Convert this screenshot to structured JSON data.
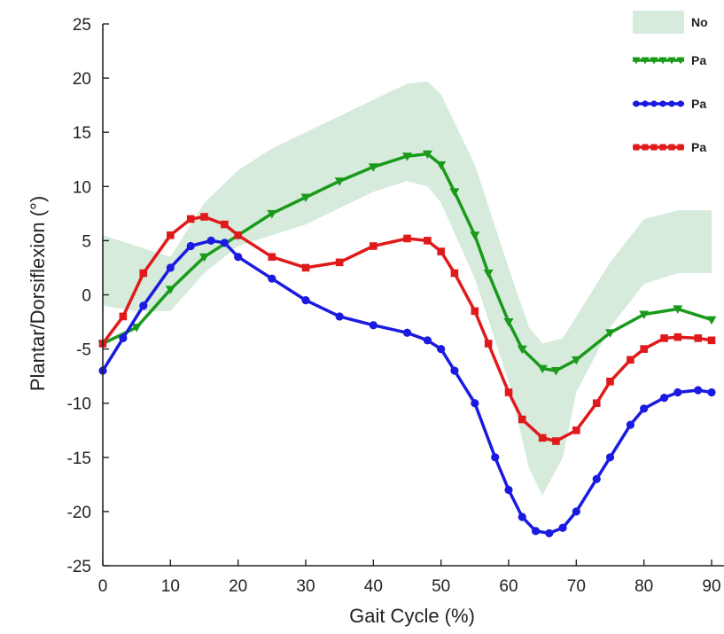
{
  "chart_data": {
    "type": "line",
    "title": "",
    "xlabel": "Gait Cycle (%)",
    "ylabel": "Plantar/Dorsiflexion (°)",
    "xlim": [
      0,
      90
    ],
    "ylim": [
      -25,
      25
    ],
    "xticks": [
      0,
      10,
      20,
      30,
      40,
      50,
      60,
      70,
      80,
      90
    ],
    "yticks": [
      -25,
      -20,
      -15,
      -10,
      -5,
      0,
      5,
      10,
      15,
      20,
      25
    ],
    "xtick_labels": [
      "0",
      "10",
      "20",
      "30",
      "40",
      "50",
      "60",
      "70",
      "80",
      "90"
    ],
    "ytick_labels": [
      "-25",
      "-20",
      "-15",
      "-10",
      "-5",
      "0",
      "5",
      "10",
      "15",
      "20",
      "25"
    ],
    "grid": false,
    "legend_position": "top-right",
    "band": {
      "name": "No",
      "color": "#d6ebdc",
      "x": [
        0,
        5,
        10,
        15,
        20,
        25,
        30,
        35,
        40,
        45,
        48,
        50,
        55,
        60,
        63,
        65,
        68,
        70,
        75,
        80,
        85,
        90
      ],
      "upper": [
        5.5,
        4.5,
        3.5,
        8.5,
        11.5,
        13.5,
        15,
        16.5,
        18,
        19.5,
        19.7,
        18.5,
        12,
        2.5,
        -3,
        -4.5,
        -4,
        -2,
        3,
        7,
        7.8,
        7.8
      ],
      "lower": [
        -1,
        -1.5,
        -1.5,
        2,
        4.5,
        5.5,
        6.5,
        8,
        9.5,
        10.5,
        10,
        8.5,
        1.5,
        -8,
        -16,
        -18.5,
        -15,
        -9,
        -3,
        1,
        2,
        2
      ]
    },
    "series": [
      {
        "name": "Pa",
        "color": "#1a9a1a",
        "marker": "triangle-down",
        "x": [
          0,
          5,
          10,
          15,
          20,
          25,
          30,
          35,
          40,
          45,
          48,
          50,
          52,
          55,
          57,
          60,
          62,
          65,
          67,
          70,
          75,
          80,
          85,
          90
        ],
        "values": [
          -4.5,
          -3,
          0.5,
          3.5,
          5.5,
          7.5,
          9,
          10.5,
          11.8,
          12.8,
          13,
          12,
          9.5,
          5.5,
          2,
          -2.5,
          -5,
          -6.8,
          -7,
          -6,
          -3.5,
          -1.8,
          -1.3,
          -2.3
        ]
      },
      {
        "name": "Pa",
        "color": "#1a1ae0",
        "marker": "circle",
        "x": [
          0,
          3,
          6,
          10,
          13,
          16,
          18,
          20,
          25,
          30,
          35,
          40,
          45,
          48,
          50,
          52,
          55,
          58,
          60,
          62,
          64,
          66,
          68,
          70,
          73,
          75,
          78,
          80,
          83,
          85,
          88,
          90
        ],
        "values": [
          -7,
          -4,
          -1,
          2.5,
          4.5,
          5,
          4.8,
          3.5,
          1.5,
          -0.5,
          -2,
          -2.8,
          -3.5,
          -4.2,
          -5,
          -7,
          -10,
          -15,
          -18,
          -20.5,
          -21.8,
          -22,
          -21.5,
          -20,
          -17,
          -15,
          -12,
          -10.5,
          -9.5,
          -9,
          -8.8,
          -9
        ]
      },
      {
        "name": "Pa",
        "color": "#e01a1a",
        "marker": "square",
        "x": [
          0,
          3,
          6,
          10,
          13,
          15,
          18,
          20,
          25,
          30,
          35,
          40,
          45,
          48,
          50,
          52,
          55,
          57,
          60,
          62,
          65,
          67,
          70,
          73,
          75,
          78,
          80,
          83,
          85,
          88,
          90
        ],
        "values": [
          -4.5,
          -2,
          2,
          5.5,
          7,
          7.2,
          6.5,
          5.5,
          3.5,
          2.5,
          3,
          4.5,
          5.2,
          5,
          4,
          2,
          -1.5,
          -4.5,
          -9,
          -11.5,
          -13.2,
          -13.5,
          -12.5,
          -10,
          -8,
          -6,
          -5,
          -4,
          -3.9,
          -4,
          -4.2
        ]
      }
    ]
  }
}
